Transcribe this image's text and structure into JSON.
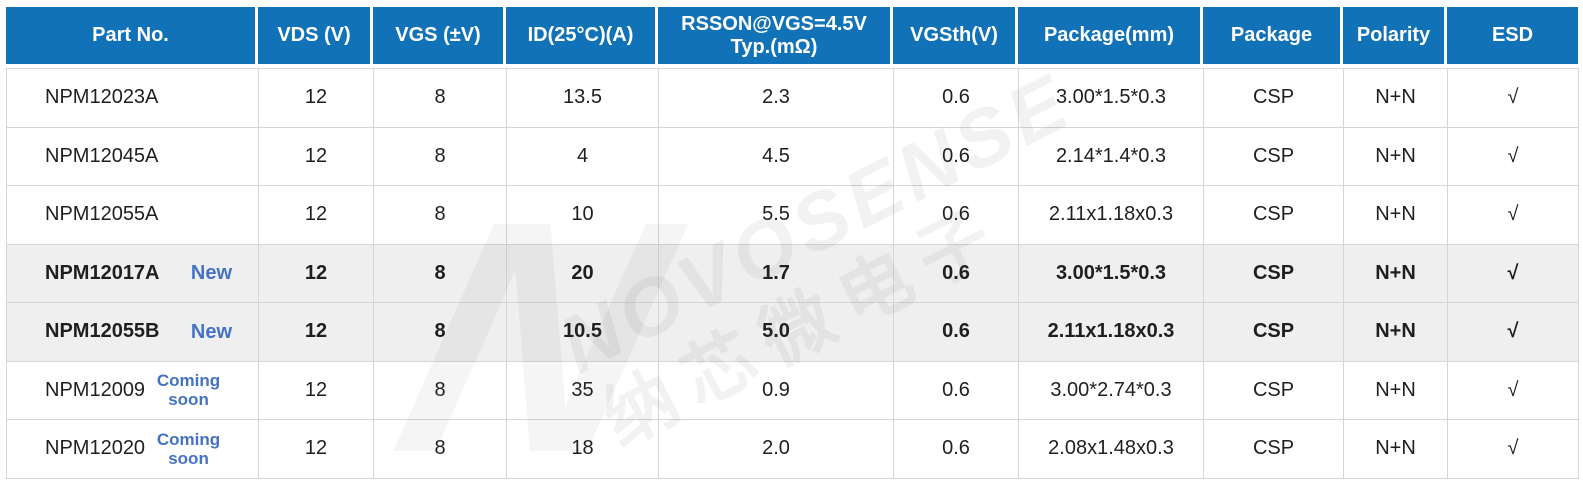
{
  "chart_data": {
    "type": "table",
    "columns": [
      {
        "label": "Part No.",
        "label2": ""
      },
      {
        "label": "VDS (V)",
        "label2": ""
      },
      {
        "label": "VGS (±V)",
        "label2": ""
      },
      {
        "label": "ID(25°C)(A)",
        "label2": ""
      },
      {
        "label": "RSSON@VGS=4.5V",
        "label2": "Typ.(mΩ)"
      },
      {
        "label": "VGSth(V)",
        "label2": ""
      },
      {
        "label": "Package(mm)",
        "label2": ""
      },
      {
        "label": "Package",
        "label2": ""
      },
      {
        "label": "Polarity",
        "label2": ""
      },
      {
        "label": "ESD",
        "label2": ""
      }
    ],
    "rows": [
      {
        "part": "NPM12023A",
        "badge": "",
        "vds": "12",
        "vgs": "8",
        "id": "13.5",
        "rsson": "2.3",
        "vgsth": "0.6",
        "package_mm": "3.00*1.5*0.3",
        "package": "CSP",
        "polarity": "N+N",
        "esd": "√",
        "highlight": false
      },
      {
        "part": "NPM12045A",
        "badge": "",
        "vds": "12",
        "vgs": "8",
        "id": "4",
        "rsson": "4.5",
        "vgsth": "0.6",
        "package_mm": "2.14*1.4*0.3",
        "package": "CSP",
        "polarity": "N+N",
        "esd": "√",
        "highlight": false
      },
      {
        "part": "NPM12055A",
        "badge": "",
        "vds": "12",
        "vgs": "8",
        "id": "10",
        "rsson": "5.5",
        "vgsth": "0.6",
        "package_mm": "2.11x1.18x0.3",
        "package": "CSP",
        "polarity": "N+N",
        "esd": "√",
        "highlight": false
      },
      {
        "part": "NPM12017A",
        "badge": "New",
        "vds": "12",
        "vgs": "8",
        "id": "20",
        "rsson": "1.7",
        "vgsth": "0.6",
        "package_mm": "3.00*1.5*0.3",
        "package": "CSP",
        "polarity": "N+N",
        "esd": "√",
        "highlight": true
      },
      {
        "part": "NPM12055B",
        "badge": "New",
        "vds": "12",
        "vgs": "8",
        "id": "10.5",
        "rsson": "5.0",
        "vgsth": "0.6",
        "package_mm": "2.11x1.18x0.3",
        "package": "CSP",
        "polarity": "N+N",
        "esd": "√",
        "highlight": true
      },
      {
        "part": "NPM12009",
        "badge": "Coming soon",
        "vds": "12",
        "vgs": "8",
        "id": "35",
        "rsson": "0.9",
        "vgsth": "0.6",
        "package_mm": "3.00*2.74*0.3",
        "package": "CSP",
        "polarity": "N+N",
        "esd": "√",
        "highlight": false
      },
      {
        "part": "NPM12020",
        "badge": "Coming soon",
        "vds": "12",
        "vgs": "8",
        "id": "18",
        "rsson": "2.0",
        "vgsth": "0.6",
        "package_mm": "2.08x1.48x0.3",
        "package": "CSP",
        "polarity": "N+N",
        "esd": "√",
        "highlight": false
      }
    ]
  },
  "watermark": {
    "logo_letter": "N",
    "brand": "NOVOSENSE",
    "brand_cn": "纳芯微电子"
  },
  "colors": {
    "header_bg": "#1272b8",
    "header_text": "#ffffff",
    "badge": "#4472c4",
    "highlight_row": "#efefef",
    "border": "#d6d6d6",
    "text": "#1f1f1f"
  }
}
